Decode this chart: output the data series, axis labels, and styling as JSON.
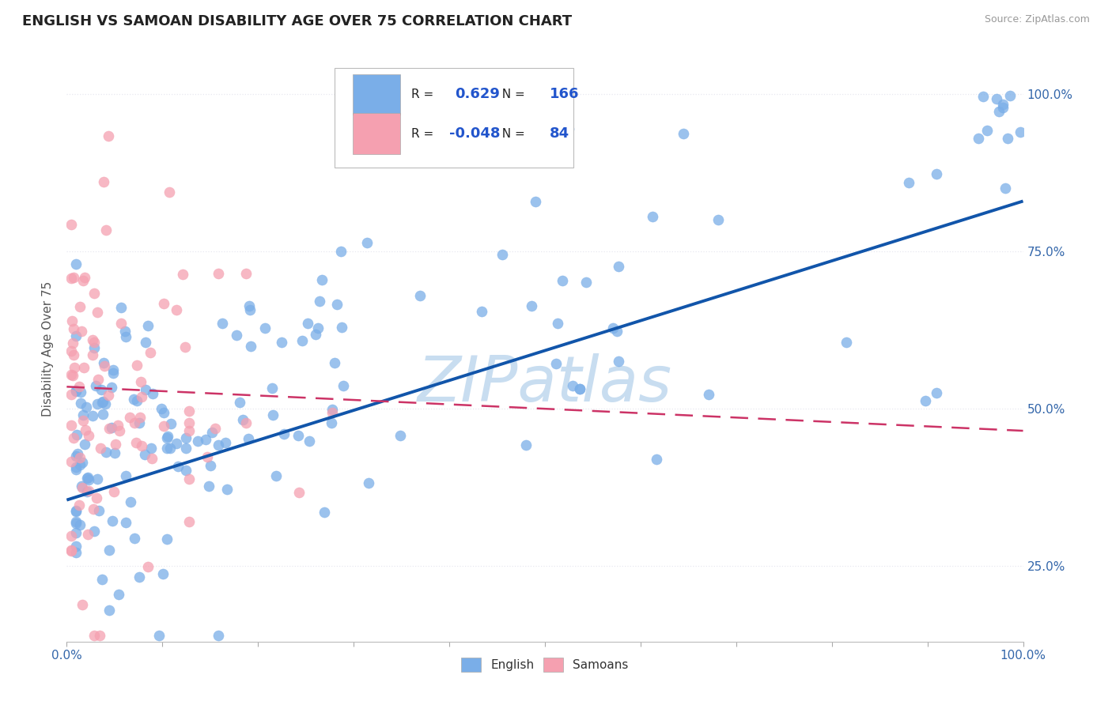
{
  "title": "ENGLISH VS SAMOAN DISABILITY AGE OVER 75 CORRELATION CHART",
  "source": "Source: ZipAtlas.com",
  "ylabel": "Disability Age Over 75",
  "xmin": 0.0,
  "xmax": 1.0,
  "ymin": 0.13,
  "ymax": 1.06,
  "right_yticks": [
    0.25,
    0.5,
    0.75,
    1.0
  ],
  "right_ytick_labels": [
    "25.0%",
    "50.0%",
    "75.0%",
    "100.0%"
  ],
  "blue_R": 0.629,
  "blue_N": 166,
  "pink_R": -0.048,
  "pink_N": 84,
  "legend_english": "English",
  "legend_samoans": "Samoans",
  "blue_color": "#7aaee8",
  "pink_color": "#f5a0b0",
  "blue_line_color": "#1155aa",
  "pink_line_color": "#cc3366",
  "watermark": "ZIPatlas",
  "watermark_color": "#c8ddf0",
  "background_color": "#ffffff",
  "grid_color": "#e8e8f0",
  "blue_trend_x0": 0.0,
  "blue_trend_y0": 0.355,
  "blue_trend_x1": 1.0,
  "blue_trend_y1": 0.83,
  "pink_trend_x0": 0.0,
  "pink_trend_y0": 0.535,
  "pink_trend_x1": 1.0,
  "pink_trend_y1": 0.465
}
